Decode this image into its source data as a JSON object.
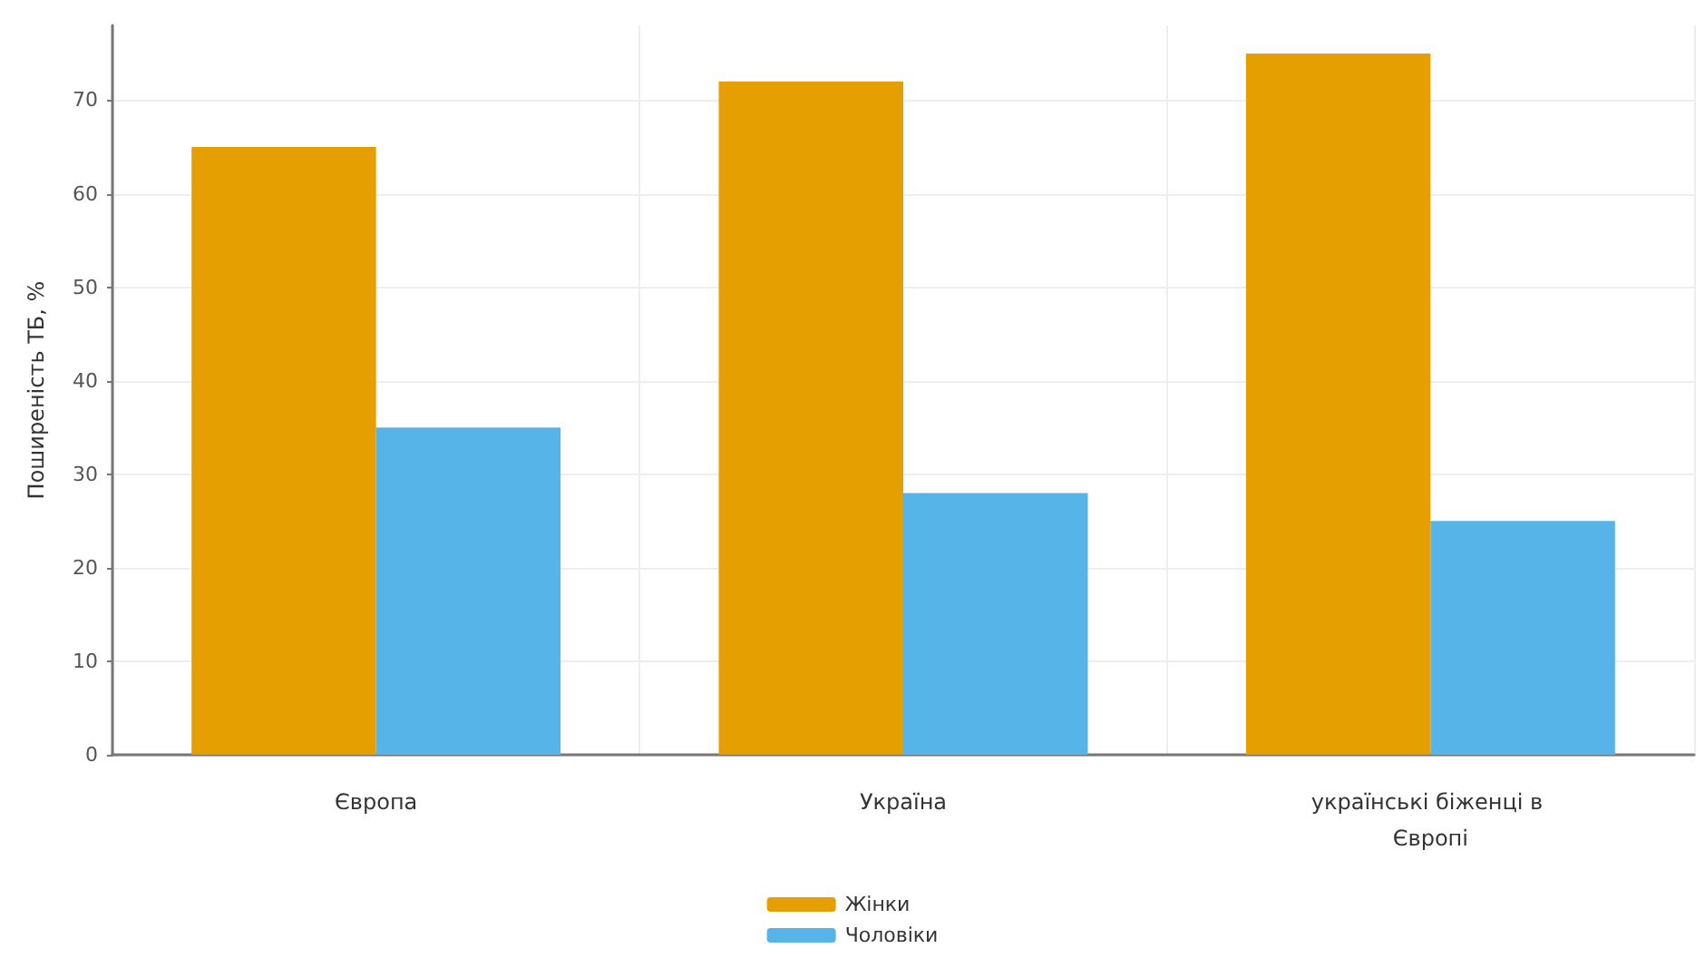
{
  "chart_data": {
    "type": "bar",
    "ylabel": "Поширеність ТБ, %",
    "categories": [
      "Європа",
      "Україна",
      "українські біженці в Європі"
    ],
    "series": [
      {
        "name": "Жінки",
        "color": "#e69f00",
        "values": [
          65,
          72,
          75
        ]
      },
      {
        "name": "Чоловіки",
        "color": "#56b4e9",
        "values": [
          35,
          28,
          25
        ]
      }
    ],
    "ylim": [
      0,
      78
    ],
    "yticks": [
      0,
      10,
      20,
      30,
      40,
      50,
      60,
      70
    ],
    "grid": true,
    "legend": "bottom"
  }
}
